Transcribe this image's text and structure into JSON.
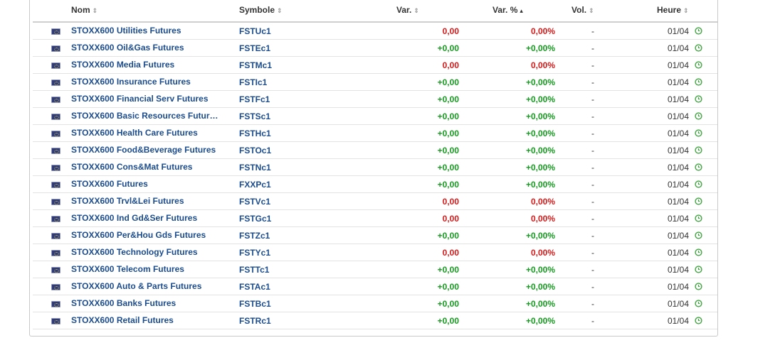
{
  "table": {
    "headers": {
      "name": "Nom",
      "symbol": "Symbole",
      "change": "Var.",
      "change_pct": "Var. %",
      "volume": "Vol.",
      "time": "Heure"
    },
    "sort_icon": "sort-arrows-icon",
    "rows": [
      {
        "name": "STOXX600 Utilities Futures",
        "symbol": "FSTUc1",
        "change": "0,00",
        "change_pct": "0,00%",
        "volume": "-",
        "time": "01/04",
        "dir": "down"
      },
      {
        "name": "STOXX600 Oil&Gas Futures",
        "symbol": "FSTEc1",
        "change": "+0,00",
        "change_pct": "+0,00%",
        "volume": "-",
        "time": "01/04",
        "dir": "up"
      },
      {
        "name": "STOXX600 Media Futures",
        "symbol": "FSTMc1",
        "change": "0,00",
        "change_pct": "0,00%",
        "volume": "-",
        "time": "01/04",
        "dir": "down"
      },
      {
        "name": "STOXX600 Insurance Futures",
        "symbol": "FSTIc1",
        "change": "+0,00",
        "change_pct": "+0,00%",
        "volume": "-",
        "time": "01/04",
        "dir": "up"
      },
      {
        "name": "STOXX600 Financial Serv Futures",
        "symbol": "FSTFc1",
        "change": "+0,00",
        "change_pct": "+0,00%",
        "volume": "-",
        "time": "01/04",
        "dir": "up"
      },
      {
        "name": "STOXX600 Basic Resources Futur…",
        "symbol": "FSTSc1",
        "change": "+0,00",
        "change_pct": "+0,00%",
        "volume": "-",
        "time": "01/04",
        "dir": "up"
      },
      {
        "name": "STOXX600 Health Care Futures",
        "symbol": "FSTHc1",
        "change": "+0,00",
        "change_pct": "+0,00%",
        "volume": "-",
        "time": "01/04",
        "dir": "up"
      },
      {
        "name": "STOXX600 Food&Beverage Futures",
        "symbol": "FSTOc1",
        "change": "+0,00",
        "change_pct": "+0,00%",
        "volume": "-",
        "time": "01/04",
        "dir": "up"
      },
      {
        "name": "STOXX600 Cons&Mat Futures",
        "symbol": "FSTNc1",
        "change": "+0,00",
        "change_pct": "+0,00%",
        "volume": "-",
        "time": "01/04",
        "dir": "up"
      },
      {
        "name": "STOXX600 Futures",
        "symbol": "FXXPc1",
        "change": "+0,00",
        "change_pct": "+0,00%",
        "volume": "-",
        "time": "01/04",
        "dir": "up"
      },
      {
        "name": "STOXX600 Trvl&Lei Futures",
        "symbol": "FSTVc1",
        "change": "0,00",
        "change_pct": "0,00%",
        "volume": "-",
        "time": "01/04",
        "dir": "down"
      },
      {
        "name": "STOXX600 Ind Gd&Ser Futures",
        "symbol": "FSTGc1",
        "change": "0,00",
        "change_pct": "0,00%",
        "volume": "-",
        "time": "01/04",
        "dir": "down"
      },
      {
        "name": "STOXX600 Per&Hou Gds Futures",
        "symbol": "FSTZc1",
        "change": "+0,00",
        "change_pct": "+0,00%",
        "volume": "-",
        "time": "01/04",
        "dir": "up"
      },
      {
        "name": "STOXX600 Technology Futures",
        "symbol": "FSTYc1",
        "change": "0,00",
        "change_pct": "0,00%",
        "volume": "-",
        "time": "01/04",
        "dir": "down"
      },
      {
        "name": "STOXX600 Telecom Futures",
        "symbol": "FSTTc1",
        "change": "+0,00",
        "change_pct": "+0,00%",
        "volume": "-",
        "time": "01/04",
        "dir": "up"
      },
      {
        "name": "STOXX600 Auto & Parts Futures",
        "symbol": "FSTAc1",
        "change": "+0,00",
        "change_pct": "+0,00%",
        "volume": "-",
        "time": "01/04",
        "dir": "up"
      },
      {
        "name": "STOXX600 Banks Futures",
        "symbol": "FSTBc1",
        "change": "+0,00",
        "change_pct": "+0,00%",
        "volume": "-",
        "time": "01/04",
        "dir": "up"
      },
      {
        "name": "STOXX600 Retail Futures",
        "symbol": "FSTRc1",
        "change": "+0,00",
        "change_pct": "+0,00%",
        "volume": "-",
        "time": "01/04",
        "dir": "up"
      }
    ]
  },
  "colors": {
    "up": "#169a1f",
    "down": "#d31a1a",
    "link": "#1b4c8e",
    "clock": "#3fa33f"
  },
  "icons": {
    "flag": "eu-flag-icon",
    "clock": "clock-icon"
  }
}
